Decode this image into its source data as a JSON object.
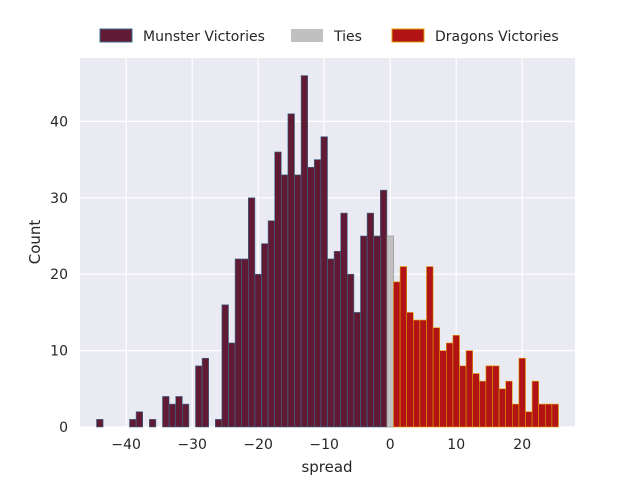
{
  "chart_data": {
    "type": "bar",
    "xlabel": "spread",
    "ylabel": "Count",
    "xlim": [
      -47,
      28
    ],
    "ylim": [
      0,
      48.3
    ],
    "bin_width": 1,
    "x_ticks": [
      -40,
      -30,
      -20,
      -10,
      0,
      10,
      20
    ],
    "x_tick_labels": [
      "−40",
      "−30",
      "−20",
      "−10",
      "0",
      "10",
      "20"
    ],
    "y_ticks": [
      0,
      10,
      20,
      30,
      40
    ],
    "y_tick_labels": [
      "0",
      "10",
      "20",
      "30",
      "40"
    ],
    "grid": true,
    "legend_position": "top-center",
    "series": [
      {
        "name": "Munster Victories",
        "color": "#611a33",
        "edge_color": "#3a6e8f",
        "x": [
          -44,
          -43,
          -42,
          -41,
          -40,
          -39,
          -38,
          -37,
          -36,
          -35,
          -34,
          -33,
          -32,
          -31,
          -30,
          -29,
          -28,
          -27,
          -26,
          -25,
          -24,
          -23,
          -22,
          -21,
          -20,
          -19,
          -18,
          -17,
          -16,
          -15,
          -14,
          -13,
          -12,
          -11,
          -10,
          -9,
          -8,
          -7,
          -6,
          -5,
          -4,
          -3,
          -2,
          -1
        ],
        "values": [
          1,
          0,
          0,
          0,
          0,
          1,
          2,
          0,
          1,
          0,
          4,
          3,
          4,
          3,
          0,
          8,
          9,
          0,
          1,
          16,
          11,
          22,
          22,
          30,
          20,
          24,
          27,
          36,
          33,
          41,
          33,
          46,
          34,
          35,
          38,
          22,
          23,
          28,
          20,
          15,
          25,
          28,
          25,
          31
        ]
      },
      {
        "name": "Ties",
        "color": "#c0c0c0",
        "edge_color": "#888888",
        "x": [
          0
        ],
        "values": [
          25
        ]
      },
      {
        "name": "Dragons Victories",
        "color": "#b21416",
        "edge_color": "#e0a000",
        "x": [
          1,
          2,
          3,
          4,
          5,
          6,
          7,
          8,
          9,
          10,
          11,
          12,
          13,
          14,
          15,
          16,
          17,
          18,
          19,
          20,
          21,
          22,
          23,
          24,
          25
        ],
        "values": [
          19,
          21,
          15,
          14,
          14,
          21,
          13,
          10,
          11,
          12,
          8,
          10,
          7,
          6,
          8,
          8,
          5,
          6,
          3,
          9,
          2,
          6,
          3,
          3,
          3
        ]
      }
    ]
  }
}
